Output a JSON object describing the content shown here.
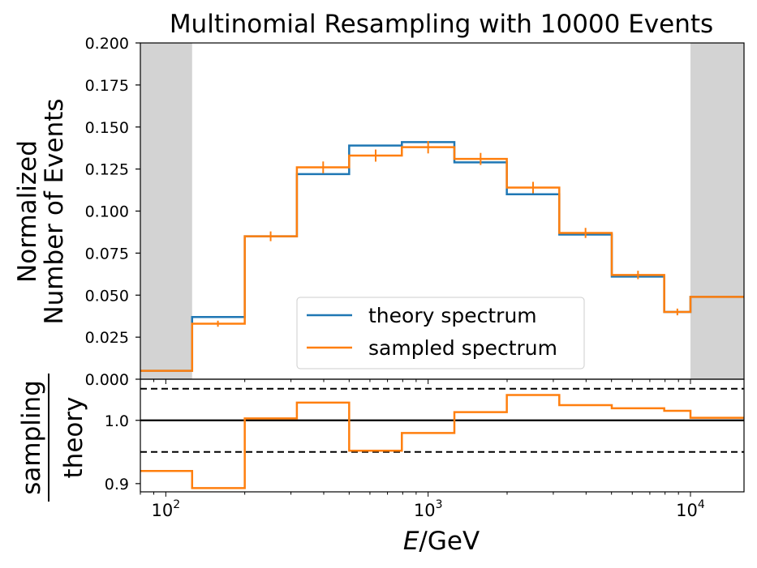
{
  "chart_data": [
    {
      "type": "line",
      "panel": "top",
      "title": "Multinomial Resampling with 10000 Events",
      "ylabel_line1": "Normalized",
      "ylabel_line2": "Number of Events",
      "ylim": [
        0.0,
        0.2
      ],
      "yticks": [
        0.0,
        0.025,
        0.05,
        0.075,
        0.1,
        0.125,
        0.15,
        0.175,
        0.2
      ],
      "ytick_labels": [
        "0.000",
        "0.025",
        "0.050",
        "0.075",
        "0.100",
        "0.125",
        "0.150",
        "0.175",
        "0.200"
      ],
      "xscale": "log",
      "xlim": [
        80,
        16000
      ],
      "shaded_regions": [
        [
          80,
          126
        ],
        [
          10000,
          16000
        ]
      ],
      "bin_edges": [
        80,
        126,
        200,
        316,
        500,
        794,
        1259,
        1995,
        3162,
        5012,
        7943,
        10000,
        16000
      ],
      "series": [
        {
          "name": "theory spectrum",
          "color": "#1f77b4",
          "values": [
            0.005,
            0.037,
            0.085,
            0.122,
            0.139,
            0.141,
            0.129,
            0.11,
            0.086,
            0.061,
            0.04,
            0.049
          ]
        },
        {
          "name": "sampled spectrum",
          "color": "#ff7f0e",
          "values": [
            0.005,
            0.033,
            0.085,
            0.126,
            0.133,
            0.138,
            0.131,
            0.114,
            0.087,
            0.062,
            0.04,
            0.049
          ],
          "error_bar_x": [
            158,
            251,
            398,
            631,
            1000,
            1585,
            2512,
            3981,
            6310,
            8913
          ],
          "error_bar_y": [
            0.033,
            0.085,
            0.126,
            0.133,
            0.138,
            0.131,
            0.114,
            0.087,
            0.062,
            0.04
          ],
          "error_bar_err": [
            0.0018,
            0.0029,
            0.0035,
            0.0036,
            0.0037,
            0.0036,
            0.0034,
            0.003,
            0.0025,
            0.002
          ]
        }
      ],
      "legend": {
        "placement": "lower-center"
      }
    },
    {
      "type": "line",
      "panel": "bottom",
      "ylabel_numerator": "sampling",
      "ylabel_denominator": "theory",
      "ylim": [
        0.887,
        1.065
      ],
      "yticks": [
        0.9,
        1.0
      ],
      "ytick_labels": [
        "0.9",
        "1.0"
      ],
      "top_tick_label": "0.000",
      "reference_line": 1.0,
      "dashed_lines": [
        0.95,
        1.05
      ],
      "xscale": "log",
      "xlim": [
        80,
        16000
      ],
      "xticks": [
        100,
        1000,
        10000
      ],
      "xtick_labels": [
        {
          "base": "10",
          "exp": "2"
        },
        {
          "base": "10",
          "exp": "3"
        },
        {
          "base": "10",
          "exp": "4"
        }
      ],
      "xlabel_var": "E",
      "xlabel_unit": "/GeV",
      "bin_edges": [
        80,
        126,
        200,
        316,
        500,
        794,
        1259,
        1995,
        3162,
        5012,
        7943,
        10000,
        16000
      ],
      "series": [
        {
          "name": "",
          "color": "#ff7f0e",
          "values": [
            0.92,
            0.893,
            1.003,
            1.028,
            0.952,
            0.98,
            1.013,
            1.04,
            1.024,
            1.019,
            1.015,
            1.004
          ]
        }
      ]
    }
  ]
}
